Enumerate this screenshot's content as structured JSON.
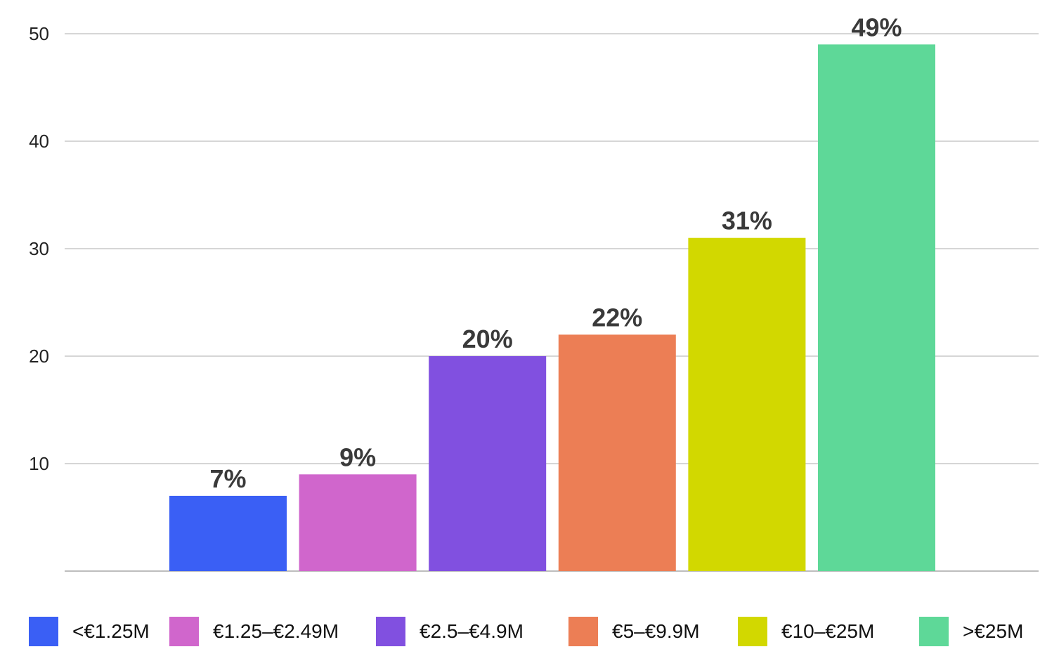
{
  "chart_data": {
    "type": "bar",
    "categories": [
      "<€1.25M",
      "€1.25–€2.49M",
      "€2.5–€4.9M",
      "€5–€9.9M",
      "€10–€25M",
      ">€25M"
    ],
    "values": [
      7,
      9,
      20,
      22,
      31,
      49
    ],
    "data_labels": [
      "7%",
      "9%",
      "20%",
      "22%",
      "31%",
      "49%"
    ],
    "colors": [
      "#3a5ff5",
      "#d066cc",
      "#8150e0",
      "#ec7e55",
      "#d2d800",
      "#5ed898"
    ],
    "y_ticks": [
      10,
      20,
      30,
      40,
      50
    ],
    "ylim": [
      0,
      50
    ],
    "grid": true,
    "legend_position": "bottom"
  }
}
